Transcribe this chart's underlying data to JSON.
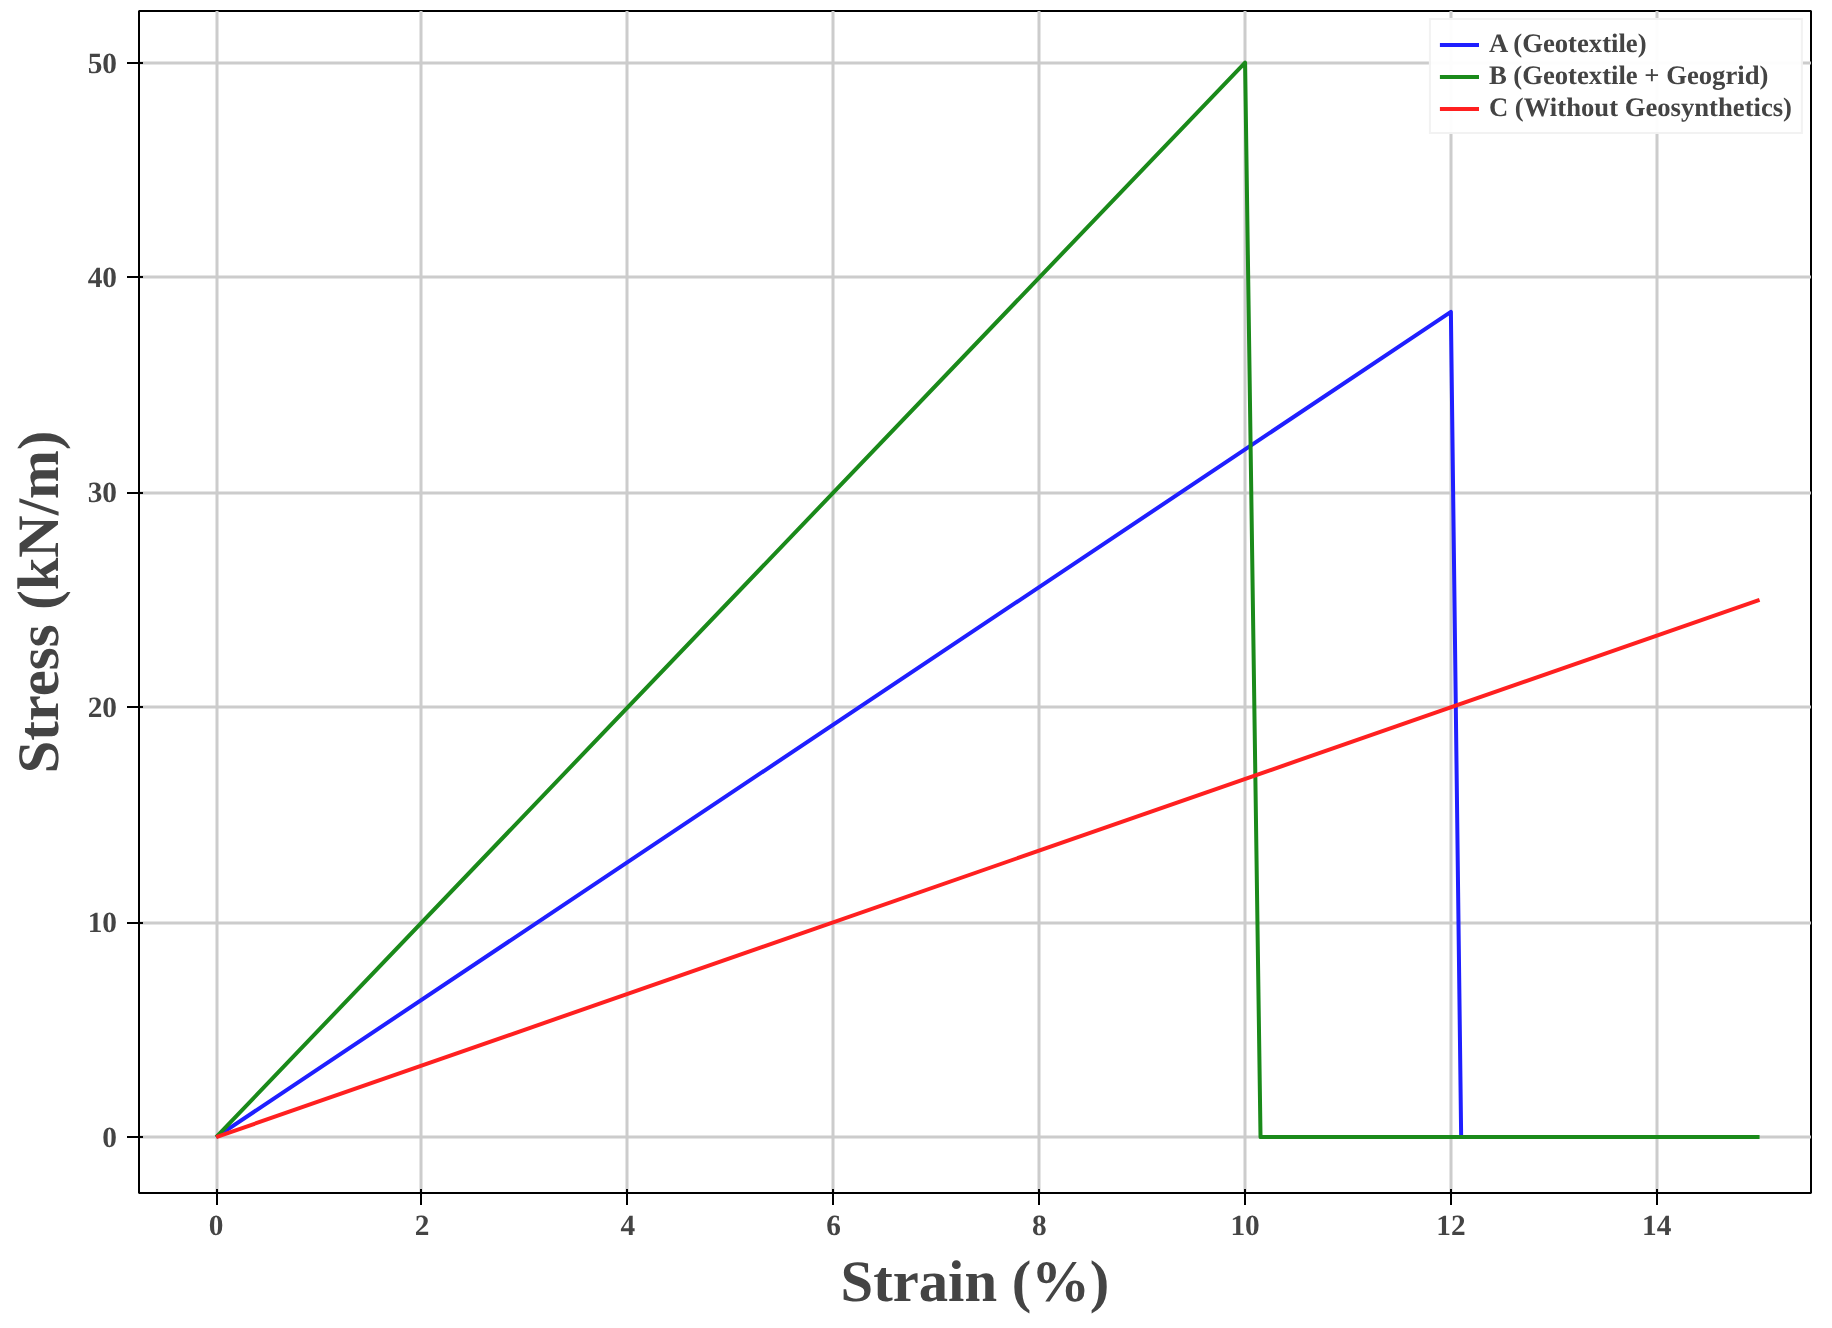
{
  "chart_data": {
    "type": "line",
    "xlabel": "Strain (%)",
    "ylabel": "Stress (kN/m)",
    "xlim": [
      -0.75,
      15.5
    ],
    "ylim": [
      -2.6,
      52.4
    ],
    "xticks": [
      0,
      2,
      4,
      6,
      8,
      10,
      12,
      14
    ],
    "yticks": [
      0,
      10,
      20,
      30,
      40,
      50
    ],
    "grid": true,
    "legend": "top right",
    "line_style": "solid",
    "marker": "none",
    "series": [
      {
        "name": "A (Geotextile)",
        "color": "#1f1fff",
        "x": [
          0,
          12,
          12.1
        ],
        "values": [
          0,
          38.4,
          0
        ]
      },
      {
        "name": "B (Geotextile + Geogrid)",
        "color": "#1a8a1a",
        "x": [
          0,
          10,
          10.15,
          15
        ],
        "values": [
          0,
          50,
          0,
          0
        ]
      },
      {
        "name": "C (Without Geosynthetics)",
        "color": "#ff2020",
        "x": [
          0,
          15
        ],
        "values": [
          0,
          25
        ]
      }
    ]
  }
}
